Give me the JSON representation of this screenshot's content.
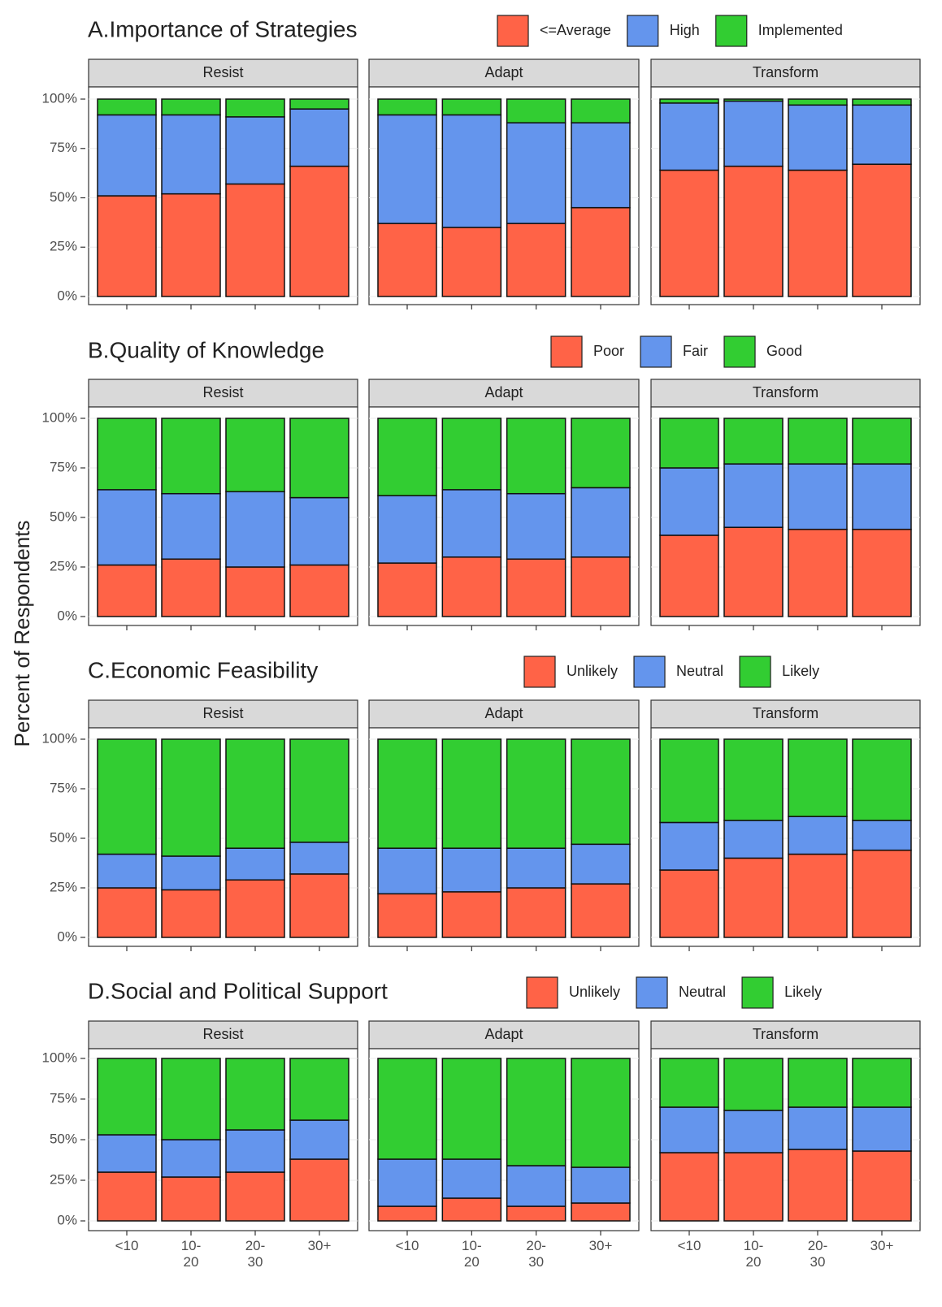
{
  "ylabel": "Percent of Respondents",
  "categories": [
    "<10",
    "10-\n20",
    "20-\n30",
    "30+"
  ],
  "chart_data": [
    {
      "type": "bar",
      "stacked": true,
      "title": "A.Importance of Strategies",
      "facets": [
        "Resist",
        "Adapt",
        "Transform"
      ],
      "ylim": [
        0,
        100
      ],
      "yticks": [
        {
          "value": 0,
          "label": "0%"
        },
        {
          "value": 25,
          "label": "25%"
        },
        {
          "value": 50,
          "label": "50%"
        },
        {
          "value": 75,
          "label": "75%"
        },
        {
          "value": 100,
          "label": "100%"
        }
      ],
      "grid": true,
      "series": [
        {
          "name": "<=Average",
          "color": "#ff6347",
          "values": [
            [
              51,
              52,
              57,
              66
            ],
            [
              37,
              35,
              37,
              45
            ],
            [
              64,
              66,
              64,
              67
            ]
          ]
        },
        {
          "name": "High",
          "color": "#6495ed",
          "values": [
            [
              41,
              40,
              34,
              29
            ],
            [
              55,
              57,
              51,
              43
            ],
            [
              34,
              33,
              33,
              30
            ]
          ]
        },
        {
          "name": "Implemented",
          "color": "#32cd32",
          "values": [
            [
              8,
              8,
              9,
              5
            ],
            [
              8,
              8,
              12,
              12
            ],
            [
              2,
              1,
              3,
              3
            ]
          ]
        }
      ]
    },
    {
      "type": "bar",
      "stacked": true,
      "title": "B.Quality of Knowledge",
      "facets": [
        "Resist",
        "Adapt",
        "Transform"
      ],
      "ylim": [
        0,
        100
      ],
      "yticks": [
        {
          "value": 0,
          "label": "0%"
        },
        {
          "value": 25,
          "label": "25%"
        },
        {
          "value": 50,
          "label": "50%"
        },
        {
          "value": 75,
          "label": "75%"
        },
        {
          "value": 100,
          "label": "100%"
        }
      ],
      "grid": true,
      "series": [
        {
          "name": "Poor",
          "color": "#ff6347",
          "values": [
            [
              26,
              29,
              25,
              26
            ],
            [
              27,
              30,
              29,
              30
            ],
            [
              41,
              45,
              44,
              44
            ]
          ]
        },
        {
          "name": "Fair",
          "color": "#6495ed",
          "values": [
            [
              38,
              33,
              38,
              34
            ],
            [
              34,
              34,
              33,
              35
            ],
            [
              34,
              32,
              33,
              33
            ]
          ]
        },
        {
          "name": "Good",
          "color": "#32cd32",
          "values": [
            [
              36,
              38,
              37,
              40
            ],
            [
              39,
              36,
              38,
              35
            ],
            [
              25,
              23,
              23,
              23
            ]
          ]
        }
      ]
    },
    {
      "type": "bar",
      "stacked": true,
      "title": "C.Economic Feasibility",
      "facets": [
        "Resist",
        "Adapt",
        "Transform"
      ],
      "ylim": [
        0,
        100
      ],
      "yticks": [
        {
          "value": 0,
          "label": "0%"
        },
        {
          "value": 25,
          "label": "25%"
        },
        {
          "value": 50,
          "label": "50%"
        },
        {
          "value": 75,
          "label": "75%"
        },
        {
          "value": 100,
          "label": "100%"
        }
      ],
      "grid": true,
      "series": [
        {
          "name": "Unlikely",
          "color": "#ff6347",
          "values": [
            [
              25,
              24,
              29,
              32
            ],
            [
              22,
              23,
              25,
              27
            ],
            [
              34,
              40,
              42,
              44
            ]
          ]
        },
        {
          "name": "Neutral",
          "color": "#6495ed",
          "values": [
            [
              17,
              17,
              16,
              16
            ],
            [
              23,
              22,
              20,
              20
            ],
            [
              24,
              19,
              19,
              15
            ]
          ]
        },
        {
          "name": "Likely",
          "color": "#32cd32",
          "values": [
            [
              58,
              59,
              55,
              52
            ],
            [
              55,
              55,
              55,
              53
            ],
            [
              42,
              41,
              39,
              41
            ]
          ]
        }
      ]
    },
    {
      "type": "bar",
      "stacked": true,
      "title": "D.Social and Political Support",
      "facets": [
        "Resist",
        "Adapt",
        "Transform"
      ],
      "ylim": [
        0,
        100
      ],
      "yticks": [
        {
          "value": 0,
          "label": "0%"
        },
        {
          "value": 25,
          "label": "25%"
        },
        {
          "value": 50,
          "label": "50%"
        },
        {
          "value": 75,
          "label": "75%"
        },
        {
          "value": 100,
          "label": "100%"
        }
      ],
      "grid": true,
      "series": [
        {
          "name": "Unlikely",
          "color": "#ff6347",
          "values": [
            [
              30,
              27,
              30,
              38
            ],
            [
              9,
              14,
              9,
              11
            ],
            [
              42,
              42,
              44,
              43
            ]
          ]
        },
        {
          "name": "Neutral",
          "color": "#6495ed",
          "values": [
            [
              23,
              23,
              26,
              24
            ],
            [
              29,
              24,
              25,
              22
            ],
            [
              28,
              26,
              26,
              27
            ]
          ]
        },
        {
          "name": "Likely",
          "color": "#32cd32",
          "values": [
            [
              47,
              50,
              44,
              38
            ],
            [
              62,
              62,
              66,
              67
            ],
            [
              30,
              32,
              30,
              30
            ]
          ]
        }
      ]
    }
  ]
}
